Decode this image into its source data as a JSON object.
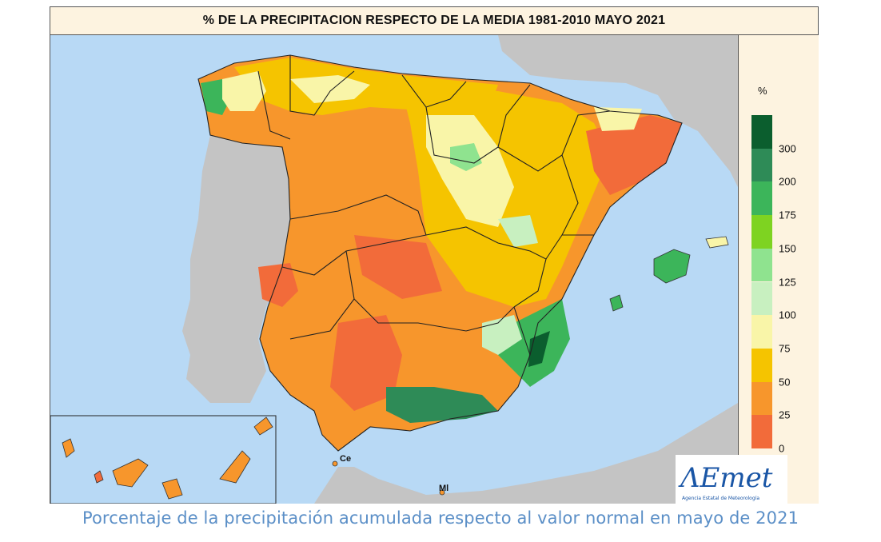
{
  "map": {
    "title": "% DE LA PRECIPITACION RESPECTO DE LA MEDIA 1981-2010 MAYO 2021",
    "caption": "Porcentaje de la precipitación acumulada respecto al valor normal en mayo de 2021",
    "labels": {
      "ceuta": "Ce",
      "melilla": "Ml"
    },
    "colors": {
      "sea": "#b8d9f5",
      "land_outside": "#c4c4c4",
      "panel": "#fdf3e0"
    }
  },
  "legend": {
    "unit": "%",
    "bands": [
      {
        "label": "",
        "color": "#0b5e2e"
      },
      {
        "label": "300",
        "color": "#2e8b57"
      },
      {
        "label": "200",
        "color": "#3cb55a"
      },
      {
        "label": "175",
        "color": "#7ed321"
      },
      {
        "label": "150",
        "color": "#8fe38f"
      },
      {
        "label": "125",
        "color": "#c8f0c0"
      },
      {
        "label": "100",
        "color": "#f9f5a8"
      },
      {
        "label": "75",
        "color": "#f5c400"
      },
      {
        "label": "50",
        "color": "#f7962c"
      },
      {
        "label": "25",
        "color": "#f26b3a"
      },
      {
        "label": "0",
        "color": ""
      }
    ]
  },
  "logo": {
    "text": "AEmet",
    "subtitle": "Agencia Estatal de Meteorología"
  }
}
